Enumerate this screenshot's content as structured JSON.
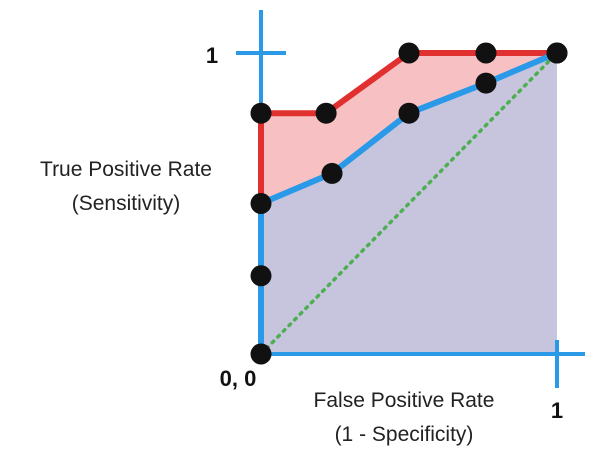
{
  "chart_data": {
    "type": "line",
    "xlabel_line1": "False Positive Rate",
    "xlabel_line2": "(1 - Specificity)",
    "ylabel_line1": "True Positive Rate",
    "ylabel_line2": "(Sensitivity)",
    "origin_label": "0, 0",
    "x_tick_label": "1",
    "y_tick_label": "1",
    "xlim": [
      0,
      1
    ],
    "ylim": [
      0,
      1
    ],
    "series": [
      {
        "color": "#e03030",
        "fill": "#f7c1c4",
        "points": [
          [
            0,
            0
          ],
          [
            0,
            0.5
          ],
          [
            0,
            0.8
          ],
          [
            0.22,
            0.8
          ],
          [
            0.5,
            1.0
          ],
          [
            0.76,
            1.0
          ],
          [
            1,
            1.0
          ]
        ],
        "markers": [
          [
            0,
            0.8
          ],
          [
            0.22,
            0.8
          ],
          [
            0.5,
            1.0
          ],
          [
            0.76,
            1.0
          ],
          [
            1,
            1.0
          ]
        ]
      },
      {
        "color": "#2a9ae8",
        "fill": "#c7c5dd",
        "points": [
          [
            0,
            0
          ],
          [
            0,
            0.5
          ],
          [
            0.24,
            0.6
          ],
          [
            0.5,
            0.8
          ],
          [
            0.76,
            0.9
          ],
          [
            1,
            1.0
          ]
        ],
        "markers": [
          [
            0,
            0
          ],
          [
            0,
            0.26
          ],
          [
            0,
            0.5
          ],
          [
            0.24,
            0.6
          ],
          [
            0.5,
            0.8
          ],
          [
            0.76,
            0.9
          ],
          [
            1,
            1.0
          ]
        ]
      }
    ],
    "reference_line": {
      "color": "#4caf50",
      "style": "dotted",
      "points": [
        [
          0,
          0
        ],
        [
          1,
          1
        ]
      ]
    },
    "colors": {
      "axis": "#2a9ae8",
      "marker": "#111111"
    }
  }
}
